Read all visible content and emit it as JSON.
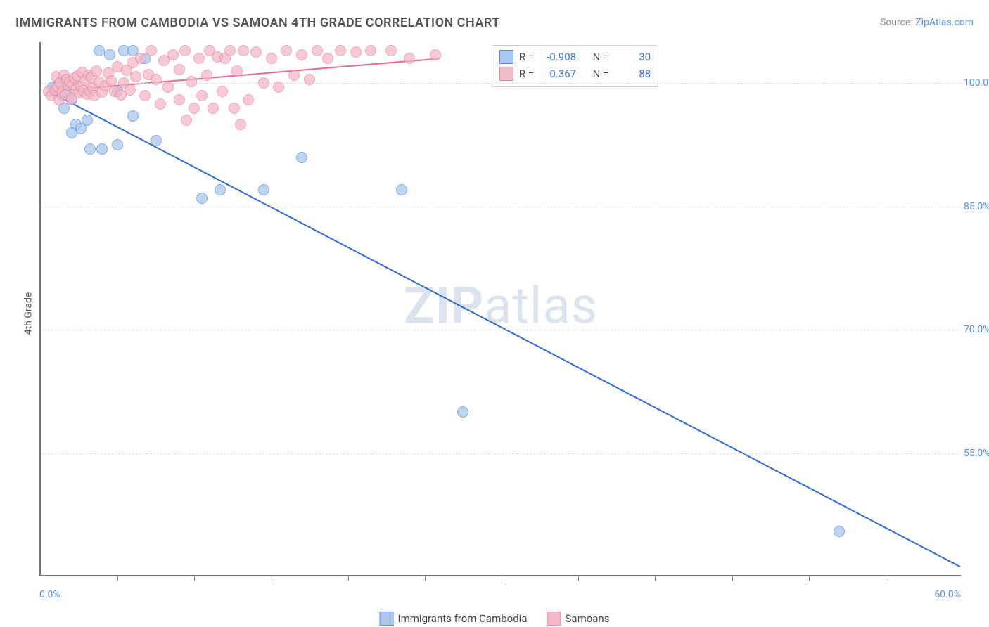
{
  "title": "IMMIGRANTS FROM CAMBODIA VS SAMOAN 4TH GRADE CORRELATION CHART",
  "source_prefix": "Source: ",
  "source_name": "ZipAtlas.com",
  "watermark_a": "ZIP",
  "watermark_b": "atlas",
  "chart": {
    "type": "scatter",
    "x_min": 0.0,
    "x_max": 60.0,
    "y_min": 40.0,
    "y_max": 105.0,
    "ylabel": "4th Grade",
    "x_start_label": "0.0%",
    "x_end_label": "60.0%",
    "y_ticks": [
      55.0,
      70.0,
      85.0,
      100.0
    ],
    "y_tick_labels": [
      "55.0%",
      "70.0%",
      "85.0%",
      "100.0%"
    ],
    "x_ticks_minor": [
      5,
      10,
      15,
      20,
      25,
      30,
      35,
      40,
      45,
      50,
      55
    ],
    "grid_color": "#dddddd",
    "axis_color": "#777777",
    "background_color": "#ffffff",
    "series": [
      {
        "name": "Immigrants from Cambodia",
        "color_fill": "#a9c7ec",
        "color_stroke": "#5b8def",
        "marker_radius": 8,
        "R": "-0.908",
        "N": "30",
        "trend": {
          "x1": 0.5,
          "y1": 99.0,
          "x2": 60.0,
          "y2": 41.0,
          "stroke": "#2f6bd6",
          "width": 2
        },
        "points": [
          [
            0.8,
            99.5
          ],
          [
            1.0,
            99.0
          ],
          [
            1.2,
            100.0
          ],
          [
            1.4,
            98.5
          ],
          [
            1.6,
            99.8
          ],
          [
            1.8,
            99.2
          ],
          [
            2.0,
            98.0
          ],
          [
            2.3,
            95.0
          ],
          [
            2.0,
            94.0
          ],
          [
            2.6,
            94.5
          ],
          [
            3.0,
            95.5
          ],
          [
            1.5,
            97.0
          ],
          [
            3.2,
            92.0
          ],
          [
            4.0,
            92.0
          ],
          [
            5.0,
            92.5
          ],
          [
            3.8,
            104.0
          ],
          [
            4.5,
            103.5
          ],
          [
            5.4,
            104.0
          ],
          [
            6.0,
            104.0
          ],
          [
            6.8,
            103.0
          ],
          [
            6.0,
            96.0
          ],
          [
            7.5,
            93.0
          ],
          [
            5.0,
            99.0
          ],
          [
            10.5,
            86.0
          ],
          [
            11.7,
            87.0
          ],
          [
            14.5,
            87.0
          ],
          [
            17.0,
            91.0
          ],
          [
            23.5,
            87.0
          ],
          [
            27.5,
            60.0
          ],
          [
            52.0,
            45.5
          ]
        ]
      },
      {
        "name": "Samoans",
        "color_fill": "#f3b8c6",
        "color_stroke": "#e88aa3",
        "marker_radius": 8,
        "R": "0.367",
        "N": "88",
        "trend": {
          "x1": 0.5,
          "y1": 99.0,
          "x2": 26.0,
          "y2": 103.0,
          "stroke": "#e26d8d",
          "width": 2
        },
        "points": [
          [
            0.5,
            99.0
          ],
          [
            0.7,
            98.5
          ],
          [
            0.9,
            99.2
          ],
          [
            1.0,
            100.8
          ],
          [
            1.1,
            99.5
          ],
          [
            1.2,
            98.0
          ],
          [
            1.3,
            100.0
          ],
          [
            1.4,
            99.0
          ],
          [
            1.5,
            101.0
          ],
          [
            1.6,
            98.6
          ],
          [
            1.7,
            100.5
          ],
          [
            1.8,
            99.8
          ],
          [
            1.9,
            100.2
          ],
          [
            2.0,
            98.2
          ],
          [
            2.1,
            99.9
          ],
          [
            2.2,
            100.6
          ],
          [
            2.3,
            99.3
          ],
          [
            2.4,
            100.9
          ],
          [
            2.5,
            98.8
          ],
          [
            2.6,
            99.6
          ],
          [
            2.7,
            101.3
          ],
          [
            2.8,
            99.1
          ],
          [
            2.9,
            100.4
          ],
          [
            3.0,
            98.7
          ],
          [
            3.1,
            101.0
          ],
          [
            3.2,
            99.0
          ],
          [
            3.3,
            100.7
          ],
          [
            3.4,
            99.4
          ],
          [
            3.5,
            98.5
          ],
          [
            3.6,
            101.5
          ],
          [
            3.8,
            100.1
          ],
          [
            4.0,
            98.9
          ],
          [
            4.2,
            99.7
          ],
          [
            4.4,
            101.2
          ],
          [
            4.6,
            100.3
          ],
          [
            4.8,
            99.0
          ],
          [
            5.0,
            102.0
          ],
          [
            5.2,
            98.6
          ],
          [
            5.4,
            100.0
          ],
          [
            5.6,
            101.6
          ],
          [
            5.8,
            99.2
          ],
          [
            6.0,
            102.5
          ],
          [
            6.2,
            100.8
          ],
          [
            6.5,
            103.0
          ],
          [
            6.8,
            98.5
          ],
          [
            7.0,
            101.1
          ],
          [
            7.2,
            104.0
          ],
          [
            7.5,
            100.5
          ],
          [
            7.8,
            97.5
          ],
          [
            8.0,
            102.8
          ],
          [
            8.3,
            99.5
          ],
          [
            8.6,
            103.5
          ],
          [
            9.0,
            98.0
          ],
          [
            9.0,
            101.7
          ],
          [
            9.4,
            104.0
          ],
          [
            9.8,
            100.2
          ],
          [
            10.0,
            97.0
          ],
          [
            10.3,
            103.0
          ],
          [
            10.5,
            98.5
          ],
          [
            10.8,
            101.0
          ],
          [
            11.0,
            104.0
          ],
          [
            11.2,
            97.0
          ],
          [
            11.5,
            103.2
          ],
          [
            11.8,
            99.0
          ],
          [
            12.0,
            103.0
          ],
          [
            12.3,
            104.0
          ],
          [
            12.6,
            97.0
          ],
          [
            12.8,
            101.5
          ],
          [
            13.2,
            104.0
          ],
          [
            13.5,
            98.0
          ],
          [
            14.0,
            103.8
          ],
          [
            13.0,
            95.0
          ],
          [
            14.5,
            100.0
          ],
          [
            9.5,
            95.5
          ],
          [
            15.0,
            103.0
          ],
          [
            15.5,
            99.5
          ],
          [
            16.0,
            104.0
          ],
          [
            16.5,
            101.0
          ],
          [
            17.0,
            103.5
          ],
          [
            17.5,
            100.5
          ],
          [
            18.0,
            104.0
          ],
          [
            18.7,
            103.0
          ],
          [
            19.5,
            104.0
          ],
          [
            20.5,
            103.8
          ],
          [
            21.5,
            104.0
          ],
          [
            22.8,
            104.0
          ],
          [
            24.0,
            103.0
          ],
          [
            25.7,
            103.5
          ]
        ]
      }
    ],
    "legend_items": [
      {
        "label": "Immigrants from Cambodia",
        "fill": "#a9c7ec",
        "stroke": "#5b8def"
      },
      {
        "label": "Samoans",
        "fill": "#f3b8c6",
        "stroke": "#e88aa3"
      }
    ],
    "stats_labels": {
      "R": "R =",
      "N": "N ="
    }
  }
}
